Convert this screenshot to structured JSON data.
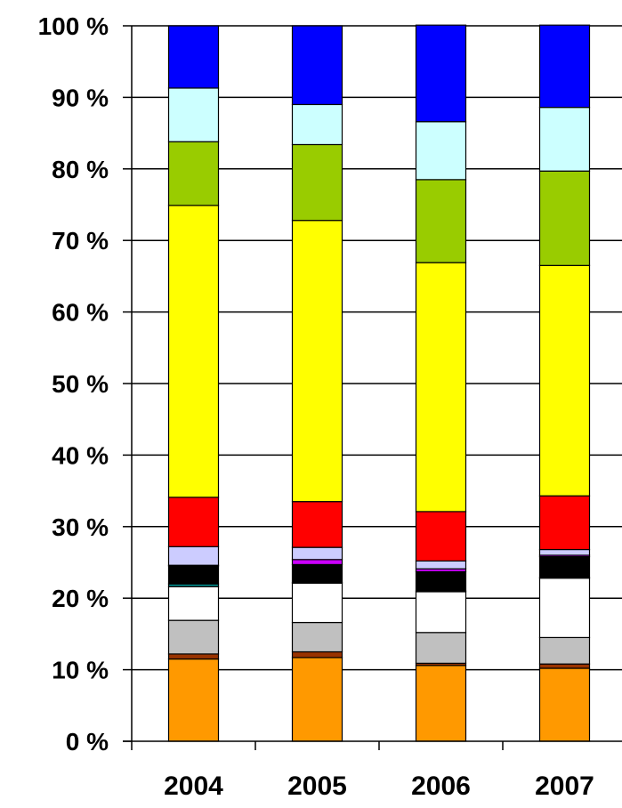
{
  "chart_data": {
    "type": "bar",
    "stacked": true,
    "percent": true,
    "categories": [
      "2004",
      "2005",
      "2006",
      "2007"
    ],
    "ylim": [
      0,
      100
    ],
    "yticks": [
      0,
      10,
      20,
      30,
      40,
      50,
      60,
      70,
      80,
      90,
      100
    ],
    "ytick_labels": [
      "0 %",
      "10 %",
      "20 %",
      "30 %",
      "40 %",
      "50 %",
      "60 %",
      "70 %",
      "80 %",
      "90 %",
      "100 %"
    ],
    "grid": true,
    "series": [
      {
        "color": "#FF9900",
        "values": [
          11.5,
          11.7,
          10.6,
          10.2
        ]
      },
      {
        "color": "#993300",
        "values": [
          0.7,
          0.8,
          0.3,
          0.6
        ]
      },
      {
        "color": "#C0C0C0",
        "values": [
          4.7,
          4.1,
          4.3,
          3.7
        ]
      },
      {
        "color": "#FFFFFF",
        "values": [
          4.7,
          5.5,
          5.7,
          8.3
        ]
      },
      {
        "color": "#008080",
        "values": [
          0.4,
          0.1,
          0.1,
          0.1
        ]
      },
      {
        "color": "#000000",
        "values": [
          2.5,
          2.5,
          2.7,
          2.9
        ]
      },
      {
        "color": "#CC00FF",
        "values": [
          0.1,
          0.7,
          0.4,
          0.2
        ]
      },
      {
        "color": "#CCCCFF",
        "values": [
          2.6,
          1.7,
          1.1,
          0.8
        ]
      },
      {
        "color": "#FF0000",
        "values": [
          6.9,
          6.4,
          6.9,
          7.5
        ]
      },
      {
        "color": "#FFFF00",
        "values": [
          40.8,
          39.3,
          34.8,
          32.2
        ]
      },
      {
        "color": "#99CC00",
        "values": [
          8.9,
          10.6,
          11.6,
          13.2
        ]
      },
      {
        "color": "#CCFFFF",
        "values": [
          7.5,
          5.6,
          8.1,
          8.9
        ]
      },
      {
        "color": "#0000FF",
        "values": [
          8.7,
          11.0,
          13.5,
          11.5
        ]
      }
    ]
  }
}
